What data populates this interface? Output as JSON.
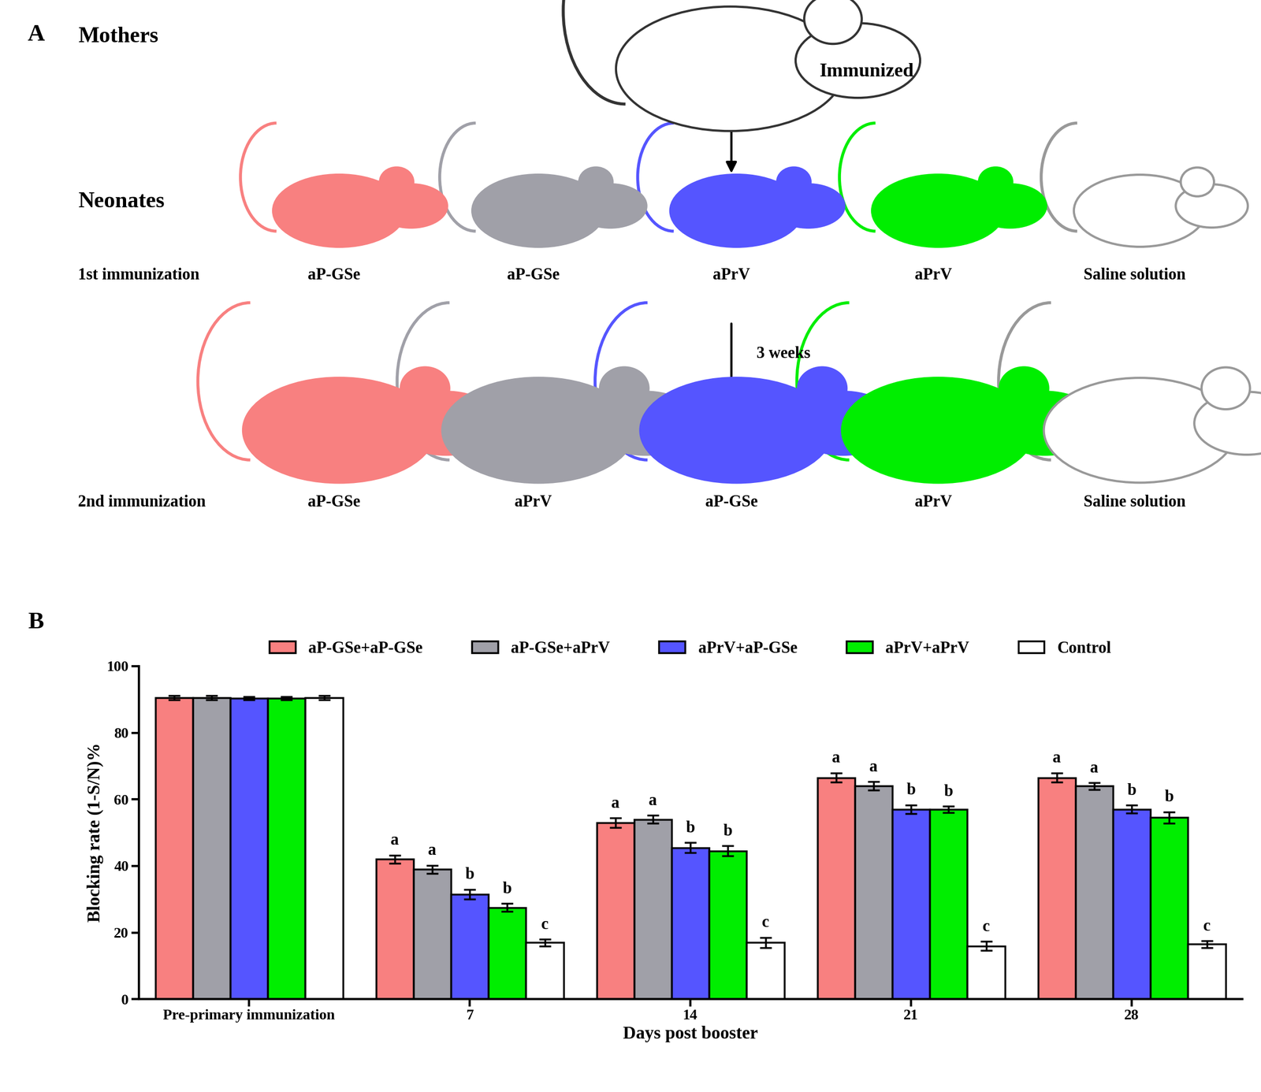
{
  "panel_labels": [
    "A",
    "B"
  ],
  "diagram": {
    "mothers": {
      "label": "Mothers",
      "state": "Immunized"
    },
    "neonates": {
      "label": "Neonates",
      "interval": "3 weeks",
      "rows": [
        {
          "label": "1st immunization",
          "groups": [
            "aP-GSe",
            "aP-GSe",
            "aPrV",
            "aPrV",
            "Saline solution"
          ]
        },
        {
          "label": "2nd immunization",
          "groups": [
            "aP-GSe",
            "aPrV",
            "aP-GSe",
            "aPrV",
            "Saline solution"
          ]
        }
      ]
    }
  },
  "chart_data": {
    "type": "bar",
    "x_label": "Days post booster",
    "y_label": "Blocking rate (1-S/N)%",
    "categories": [
      "Pre-primary immunization",
      "7",
      "14",
      "21",
      "28"
    ],
    "ylim": [
      0,
      100
    ],
    "yticks": [
      0,
      20,
      40,
      60,
      80,
      100
    ],
    "legend": "upper center",
    "series": [
      {
        "name": "aP-GSe+aP-GSe",
        "color": "#f88080",
        "values": [
          90.5,
          42,
          53,
          66.5,
          66.5
        ],
        "errors": [
          0.6,
          1.2,
          1.4,
          1.4,
          1.4
        ],
        "letters": [
          null,
          "a",
          "a",
          "a",
          "a"
        ]
      },
      {
        "name": "aP-GSe+aPrV",
        "color": "#a0a0a8",
        "values": [
          90.5,
          39,
          54,
          64,
          64
        ],
        "errors": [
          0.6,
          1.2,
          1.2,
          1.3,
          1.0
        ],
        "letters": [
          null,
          "a",
          "a",
          "a",
          "a"
        ]
      },
      {
        "name": "aPrV+aP-GSe",
        "color": "#5555ff",
        "values": [
          90.3,
          31.5,
          45.5,
          57,
          57
        ],
        "errors": [
          0.5,
          1.5,
          1.5,
          1.3,
          1.2
        ],
        "letters": [
          null,
          "b",
          "b",
          "b",
          "b"
        ]
      },
      {
        "name": "aPrV+aPrV",
        "color": "#00ee00",
        "values": [
          90.3,
          27.5,
          44.5,
          57,
          54.5
        ],
        "errors": [
          0.5,
          1.2,
          1.5,
          0.9,
          1.7
        ],
        "letters": [
          null,
          "b",
          "b",
          "b",
          "b"
        ]
      },
      {
        "name": "Control",
        "color": "#ffffff",
        "values": [
          90.5,
          17,
          17,
          16,
          16.5
        ],
        "errors": [
          0.6,
          1.0,
          1.5,
          1.3,
          1.0
        ],
        "letters": [
          null,
          "c",
          "c",
          "c",
          "c"
        ]
      }
    ]
  }
}
